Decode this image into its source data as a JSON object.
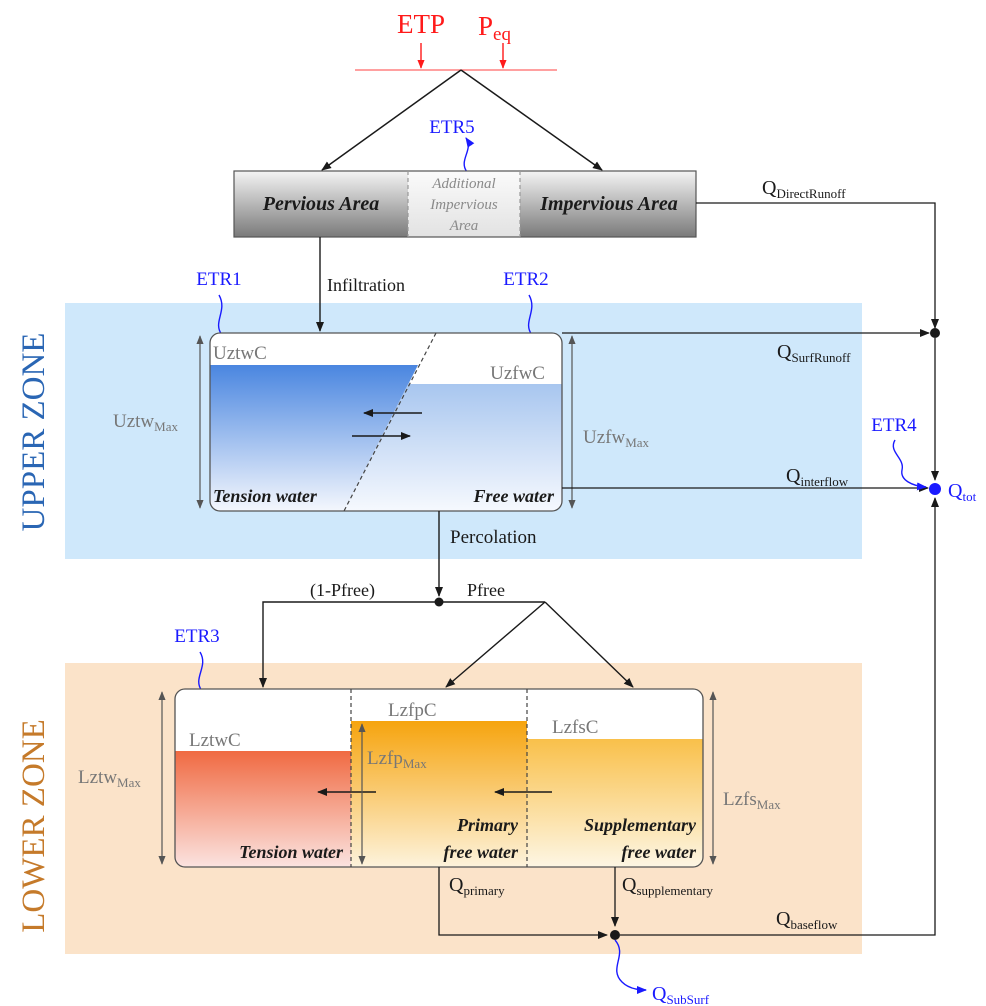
{
  "inputs": {
    "etp": "ETP",
    "peq_main": "P",
    "peq_sub": "eq"
  },
  "etr": {
    "etr1": "ETR1",
    "etr2": "ETR2",
    "etr3": "ETR3",
    "etr4": "ETR4",
    "etr5": "ETR5"
  },
  "areas": {
    "pervious": "Pervious Area",
    "additional_1": "Additional",
    "additional_2": "Impervious",
    "additional_3": "Area",
    "impervious": "Impervious Area"
  },
  "flows": {
    "infiltration": "Infiltration",
    "percolation": "Percolation",
    "one_minus_pfree": "(1-Pfree)",
    "pfree": "Pfree",
    "q_direct": {
      "main": "Q",
      "sub": "DirectRunoff"
    },
    "q_surf": {
      "main": "Q",
      "sub": "SurfRunoff"
    },
    "q_interflow": {
      "main": "Q",
      "sub": "interflow"
    },
    "q_tot": {
      "main": "Q",
      "sub": "tot"
    },
    "q_primary": {
      "main": "Q",
      "sub": "primary"
    },
    "q_supplementary": {
      "main": "Q",
      "sub": "supplementary"
    },
    "q_baseflow": {
      "main": "Q",
      "sub": "baseflow"
    },
    "q_subsurf": {
      "main": "Q",
      "sub": "SubSurf"
    }
  },
  "upper_zone": {
    "title": "UPPER ZONE",
    "uztwc": "UztwC",
    "uzfwc": "UzfwC",
    "uztw_max": {
      "main": "Uztw",
      "sub": "Max"
    },
    "uzfw_max": {
      "main": "Uzfw",
      "sub": "Max"
    },
    "tension_water": "Tension water",
    "free_water": "Free water"
  },
  "lower_zone": {
    "title": "LOWER ZONE",
    "lztwc": "LztwC",
    "lzfpc": "LzfpC",
    "lzfsc": "LzfsC",
    "lztw_max": {
      "main": "Lztw",
      "sub": "Max"
    },
    "lzfp_max": {
      "main": "Lzfp",
      "sub": "Max"
    },
    "lzfs_max": {
      "main": "Lzfs",
      "sub": "Max"
    },
    "tension_water": "Tension water",
    "primary_1": "Primary",
    "primary_2": "free water",
    "supplementary_1": "Supplementary",
    "supplementary_2": "free water"
  },
  "colors": {
    "upper_zone_bg": "#cfe8fb",
    "lower_zone_bg": "#fbe3c9",
    "upper_title": "#2a66b4",
    "lower_title": "#c57a2a",
    "etr_blue": "#1a1aff",
    "input_red": "#ff1a1a"
  }
}
